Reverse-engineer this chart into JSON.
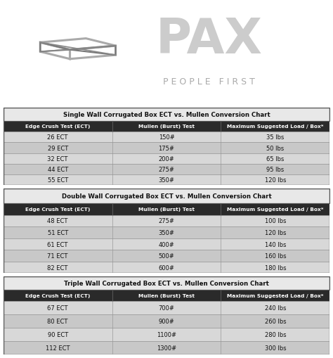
{
  "header_bg": "#1a1a1a",
  "table_header_bg": "#2a2a2a",
  "table_row_light": "#d8d8d8",
  "table_row_dark": "#c8c8c8",
  "table_border": "#555555",
  "header_text_color": "#ffffff",
  "body_bg": "#ffffff",
  "section_title_color": "#111111",
  "single_wall": {
    "title": "Single Wall Corrugated Box ECT vs. Mullen Conversion Chart",
    "headers": [
      "Edge Crush Test (ECT)",
      "Mullen (Burst) Test",
      "Maximum Suggested Load / Box*"
    ],
    "rows": [
      [
        "26 ECT",
        "150#",
        "35 lbs"
      ],
      [
        "29 ECT",
        "175#",
        "50 lbs"
      ],
      [
        "32 ECT",
        "200#",
        "65 lbs"
      ],
      [
        "44 ECT",
        "275#",
        "95 lbs"
      ],
      [
        "55 ECT",
        "350#",
        "120 lbs"
      ]
    ]
  },
  "double_wall": {
    "title": "Double Wall Corrugated Box ECT vs. Mullen Conversion Chart",
    "headers": [
      "Edge Crush Test (ECT)",
      "Mullen (Burst) Test",
      "Maximum Suggested Load / Box*"
    ],
    "rows": [
      [
        "48 ECT",
        "275#",
        "100 lbs"
      ],
      [
        "51 ECT",
        "350#",
        "120 lbs"
      ],
      [
        "61 ECT",
        "400#",
        "140 lbs"
      ],
      [
        "71 ECT",
        "500#",
        "160 lbs"
      ],
      [
        "82 ECT",
        "600#",
        "180 lbs"
      ]
    ]
  },
  "triple_wall": {
    "title": "Triple Wall Corrugated Box ECT vs. Mullen Conversion Chart",
    "headers": [
      "Edge Crush Test (ECT)",
      "Mullen (Burst) Test",
      "Maximum Suggested Load / Box*"
    ],
    "rows": [
      [
        "67 ECT",
        "700#",
        "240 lbs"
      ],
      [
        "80 ECT",
        "900#",
        "260 lbs"
      ],
      [
        "90 ECT",
        "1100#",
        "280 lbs"
      ],
      [
        "112 ECT",
        "1300#",
        "300 lbs"
      ]
    ]
  }
}
